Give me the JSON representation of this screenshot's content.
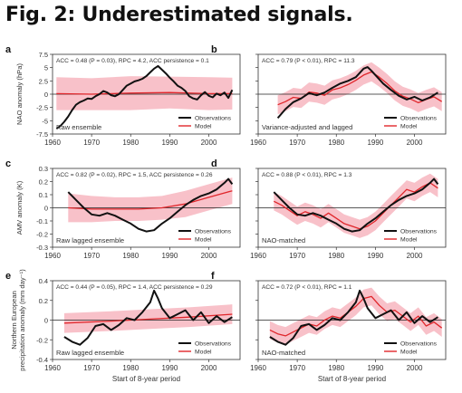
{
  "figure_title": "Fig. 2: Underestimated signals.",
  "colors": {
    "observations": "#111111",
    "model": "#e0262b",
    "band": "#f7b6bf"
  },
  "chart_data": [
    {
      "panel": "a",
      "type": "line",
      "annotation": "ACC = 0.48 (P = 0.03), RPC = 4.2, ACC persistence = 0.1",
      "label": "Raw ensemble",
      "ylabel": "NAO anomaly (hPa)",
      "xlabel": "",
      "xlim": [
        1960,
        2008
      ],
      "ylim": [
        -7.5,
        7.5
      ],
      "xticks": [
        1960,
        1970,
        1980,
        1990,
        2000
      ],
      "yticks": [
        -7.5,
        -5,
        -2.5,
        0,
        2.5,
        5,
        7.5
      ],
      "ytick_labels": [
        "-7.5",
        "-5",
        "-2.5",
        "0",
        "2.5",
        "5",
        "7.5"
      ],
      "legend": [
        "Observations",
        "Model"
      ],
      "legend_position": "bottom-right",
      "series": [
        {
          "name": "Observations",
          "x": [
            1961,
            1962,
            1963,
            1964,
            1965,
            1966,
            1967,
            1968,
            1969,
            1970,
            1971,
            1972,
            1973,
            1974,
            1975,
            1976,
            1977,
            1978,
            1979,
            1980,
            1981,
            1982,
            1983,
            1984,
            1985,
            1986,
            1987,
            1988,
            1989,
            1990,
            1991,
            1992,
            1993,
            1994,
            1995,
            1996,
            1997,
            1998,
            1999,
            2000,
            2001,
            2002,
            2003,
            2004,
            2005,
            2006
          ],
          "y": [
            -6.5,
            -6.0,
            -5.2,
            -4.2,
            -3.0,
            -2.0,
            -1.5,
            -1.2,
            -0.8,
            -0.9,
            -0.4,
            0.0,
            0.6,
            0.3,
            -0.2,
            -0.4,
            0.0,
            0.8,
            1.6,
            2.0,
            2.4,
            2.6,
            2.9,
            3.4,
            4.1,
            4.8,
            5.3,
            4.6,
            3.9,
            3.1,
            2.4,
            1.6,
            1.2,
            0.6,
            -0.4,
            -0.8,
            -1.0,
            -0.2,
            0.4,
            -0.3,
            -0.6,
            0.1,
            -0.2,
            0.3,
            -0.7,
            0.8
          ]
        },
        {
          "name": "Model",
          "x": [
            1961,
            1970,
            1980,
            1990,
            2000,
            2006
          ],
          "y": [
            0.1,
            0.0,
            0.2,
            0.3,
            0.1,
            0.1
          ],
          "band_half_width": [
            3.1,
            3.0,
            3.2,
            3.0,
            3.1,
            3.0
          ]
        }
      ]
    },
    {
      "panel": "b",
      "type": "line",
      "annotation": "ACC = 0.79 (P < 0.01), RPC = 11.3",
      "label": "Variance-adjusted and lagged",
      "ylabel": "",
      "xlabel": "",
      "xlim": [
        1960,
        2008
      ],
      "ylim": [
        -7.5,
        7.5
      ],
      "xticks": [
        1960,
        1970,
        1980,
        1990,
        2000
      ],
      "yticks": [
        -7.5,
        -5,
        -2.5,
        0,
        2.5,
        5,
        7.5
      ],
      "ytick_labels": [],
      "legend": [
        "Observations",
        "Model"
      ],
      "legend_position": "bottom-right",
      "series": [
        {
          "name": "Observations",
          "x": [
            1965,
            1967,
            1969,
            1971,
            1973,
            1975,
            1977,
            1979,
            1981,
            1983,
            1985,
            1987,
            1988,
            1989,
            1990,
            1992,
            1994,
            1996,
            1998,
            2000,
            2002,
            2004,
            2006
          ],
          "y": [
            -4.5,
            -2.8,
            -1.5,
            -0.8,
            0.2,
            -0.2,
            0.3,
            1.2,
            2.0,
            2.5,
            3.2,
            4.8,
            5.1,
            4.4,
            3.6,
            2.0,
            0.8,
            -0.3,
            -1.0,
            -0.5,
            -1.2,
            -0.6,
            0.3
          ]
        },
        {
          "name": "Model",
          "x": [
            1965,
            1967,
            1969,
            1971,
            1973,
            1975,
            1977,
            1979,
            1981,
            1983,
            1985,
            1987,
            1989,
            1991,
            1993,
            1995,
            1997,
            1999,
            2001,
            2003,
            2005,
            2007
          ],
          "y": [
            -2.0,
            -1.4,
            -0.6,
            -0.8,
            0.4,
            0.2,
            -0.2,
            0.8,
            1.2,
            1.8,
            2.6,
            3.6,
            4.2,
            3.2,
            2.0,
            0.6,
            -0.4,
            -0.9,
            -1.6,
            -1.0,
            -0.5,
            -1.4
          ],
          "band_half_width": [
            1.8,
            1.8,
            1.8,
            1.8,
            1.8,
            1.8,
            1.8,
            1.8,
            1.8,
            1.8,
            1.8,
            1.8,
            1.8,
            1.8,
            1.8,
            1.8,
            1.8,
            1.8,
            1.8,
            1.8,
            1.8,
            1.8
          ]
        }
      ]
    },
    {
      "panel": "c",
      "type": "line",
      "annotation": "ACC = 0.82 (P = 0.02), RPC = 1.5, ACC persistence = 0.26",
      "label": "Raw lagged ensemble",
      "ylabel": "AMV anomaly (K)",
      "xlabel": "",
      "xlim": [
        1960,
        2008
      ],
      "ylim": [
        -0.3,
        0.3
      ],
      "xticks": [
        1960,
        1970,
        1980,
        1990,
        2000
      ],
      "yticks": [
        -0.3,
        -0.2,
        -0.1,
        0,
        0.1,
        0.2,
        0.3
      ],
      "ytick_labels": [
        "-0.3",
        "-0.2",
        "-0.1",
        "0",
        "0.1",
        "0.2",
        "0.3"
      ],
      "legend": [
        "Observations",
        "Model"
      ],
      "legend_position": "bottom-right",
      "series": [
        {
          "name": "Observations",
          "x": [
            1964,
            1966,
            1968,
            1970,
            1972,
            1974,
            1976,
            1978,
            1980,
            1982,
            1984,
            1986,
            1988,
            1990,
            1992,
            1994,
            1996,
            1998,
            2000,
            2002,
            2004,
            2005,
            2006
          ],
          "y": [
            0.12,
            0.06,
            0.0,
            -0.05,
            -0.06,
            -0.04,
            -0.06,
            -0.09,
            -0.12,
            -0.16,
            -0.18,
            -0.17,
            -0.12,
            -0.08,
            -0.03,
            0.02,
            0.06,
            0.09,
            0.11,
            0.14,
            0.19,
            0.22,
            0.18
          ]
        },
        {
          "name": "Model",
          "x": [
            1964,
            1970,
            1976,
            1982,
            1988,
            1994,
            2000,
            2006
          ],
          "y": [
            0.0,
            -0.01,
            -0.01,
            -0.01,
            0.0,
            0.03,
            0.08,
            0.13
          ],
          "band_half_width": [
            0.11,
            0.1,
            0.09,
            0.09,
            0.09,
            0.1,
            0.1,
            0.1
          ]
        }
      ]
    },
    {
      "panel": "d",
      "type": "line",
      "annotation": "ACC = 0.88 (P < 0.01), RPC = 1.3",
      "label": "NAO-matched",
      "ylabel": "",
      "xlabel": "",
      "xlim": [
        1960,
        2008
      ],
      "ylim": [
        -0.3,
        0.3
      ],
      "xticks": [
        1960,
        1970,
        1980,
        1990,
        2000
      ],
      "yticks": [
        -0.3,
        -0.2,
        -0.1,
        0,
        0.1,
        0.2,
        0.3
      ],
      "ytick_labels": [],
      "legend": [
        "Observations",
        "Model"
      ],
      "legend_position": "bottom-right",
      "series": [
        {
          "name": "Observations",
          "x": [
            1964,
            1966,
            1968,
            1970,
            1972,
            1974,
            1976,
            1978,
            1980,
            1982,
            1984,
            1986,
            1988,
            1990,
            1992,
            1994,
            1996,
            1998,
            2000,
            2002,
            2004,
            2005,
            2006
          ],
          "y": [
            0.12,
            0.06,
            0.0,
            -0.05,
            -0.06,
            -0.04,
            -0.06,
            -0.09,
            -0.12,
            -0.16,
            -0.18,
            -0.17,
            -0.12,
            -0.08,
            -0.03,
            0.02,
            0.06,
            0.09,
            0.11,
            0.14,
            0.19,
            0.22,
            0.18
          ]
        },
        {
          "name": "Model",
          "x": [
            1964,
            1966,
            1968,
            1970,
            1972,
            1974,
            1976,
            1978,
            1980,
            1982,
            1984,
            1986,
            1988,
            1990,
            1992,
            1994,
            1996,
            1998,
            2000,
            2002,
            2004,
            2006
          ],
          "y": [
            0.05,
            0.02,
            -0.02,
            -0.06,
            -0.03,
            -0.05,
            -0.08,
            -0.04,
            -0.08,
            -0.12,
            -0.14,
            -0.16,
            -0.14,
            -0.1,
            -0.04,
            0.02,
            0.08,
            0.14,
            0.12,
            0.16,
            0.19,
            0.15
          ],
          "band_half_width": [
            0.07,
            0.07,
            0.07,
            0.07,
            0.07,
            0.07,
            0.07,
            0.07,
            0.07,
            0.07,
            0.07,
            0.07,
            0.07,
            0.07,
            0.07,
            0.07,
            0.07,
            0.07,
            0.07,
            0.07,
            0.07,
            0.07
          ]
        }
      ]
    },
    {
      "panel": "e",
      "type": "line",
      "annotation": "ACC = 0.44 (P = 0.05), RPC = 1.4, ACC persistence = 0.29",
      "label": "Raw lagged ensemble",
      "ylabel": "Northern European precipitation anomaly (mm day⁻¹)",
      "xlabel": "Start of 8-year period",
      "xlim": [
        1960,
        2008
      ],
      "ylim": [
        -0.4,
        0.4
      ],
      "xticks": [
        1960,
        1970,
        1980,
        1990,
        2000
      ],
      "yticks": [
        -0.4,
        -0.2,
        0,
        0.2,
        0.4
      ],
      "ytick_labels": [
        "-0.4",
        "-0.2",
        "0",
        "0.2",
        "0.4"
      ],
      "legend": [
        "Observations",
        "Model"
      ],
      "legend_position": "bottom-right",
      "series": [
        {
          "name": "Observations",
          "x": [
            1963,
            1965,
            1967,
            1969,
            1971,
            1973,
            1975,
            1977,
            1979,
            1981,
            1983,
            1985,
            1986,
            1987,
            1988,
            1990,
            1992,
            1994,
            1996,
            1998,
            2000,
            2002,
            2004,
            2006
          ],
          "y": [
            -0.17,
            -0.22,
            -0.25,
            -0.18,
            -0.06,
            -0.04,
            -0.1,
            -0.05,
            0.02,
            0.0,
            0.08,
            0.18,
            0.3,
            0.22,
            0.12,
            0.02,
            0.06,
            0.1,
            0.0,
            0.08,
            -0.03,
            0.04,
            -0.02,
            0.03
          ]
        },
        {
          "name": "Model",
          "x": [
            1963,
            1975,
            1985,
            1995,
            2006
          ],
          "y": [
            -0.03,
            -0.01,
            0.01,
            0.03,
            0.06
          ],
          "band_half_width": [
            0.1,
            0.1,
            0.1,
            0.1,
            0.1
          ]
        }
      ]
    },
    {
      "panel": "f",
      "type": "line",
      "annotation": "ACC = 0.72 (P < 0.01), RPC = 1.1",
      "label": "NAO-matched",
      "ylabel": "",
      "xlabel": "Start of 8-year period",
      "xlim": [
        1960,
        2008
      ],
      "ylim": [
        -0.4,
        0.4
      ],
      "xticks": [
        1960,
        1970,
        1980,
        1990,
        2000
      ],
      "yticks": [
        -0.4,
        -0.2,
        0,
        0.2,
        0.4
      ],
      "ytick_labels": [],
      "legend": [
        "Observations",
        "Model"
      ],
      "legend_position": "bottom-right",
      "series": [
        {
          "name": "Observations",
          "x": [
            1963,
            1965,
            1967,
            1969,
            1971,
            1973,
            1975,
            1977,
            1979,
            1981,
            1983,
            1985,
            1986,
            1987,
            1988,
            1990,
            1992,
            1994,
            1996,
            1998,
            2000,
            2002,
            2004,
            2006
          ],
          "y": [
            -0.17,
            -0.22,
            -0.25,
            -0.18,
            -0.06,
            -0.04,
            -0.1,
            -0.05,
            0.02,
            0.0,
            0.08,
            0.18,
            0.3,
            0.22,
            0.12,
            0.02,
            0.06,
            0.1,
            0.0,
            0.08,
            -0.03,
            0.04,
            -0.02,
            0.03
          ]
        },
        {
          "name": "Model",
          "x": [
            1963,
            1965,
            1967,
            1969,
            1971,
            1973,
            1975,
            1977,
            1979,
            1981,
            1983,
            1985,
            1987,
            1989,
            1991,
            1993,
            1995,
            1997,
            1999,
            2001,
            2003,
            2005,
            2007
          ],
          "y": [
            -0.1,
            -0.14,
            -0.16,
            -0.12,
            -0.08,
            -0.04,
            -0.06,
            0.0,
            0.04,
            0.02,
            0.08,
            0.14,
            0.22,
            0.24,
            0.15,
            0.08,
            0.1,
            0.04,
            -0.02,
            0.04,
            -0.06,
            -0.02,
            -0.08
          ],
          "band_half_width": [
            0.09,
            0.09,
            0.09,
            0.09,
            0.09,
            0.09,
            0.09,
            0.09,
            0.09,
            0.09,
            0.09,
            0.09,
            0.09,
            0.09,
            0.09,
            0.09,
            0.09,
            0.09,
            0.09,
            0.09,
            0.09,
            0.09,
            0.09
          ]
        }
      ]
    }
  ]
}
